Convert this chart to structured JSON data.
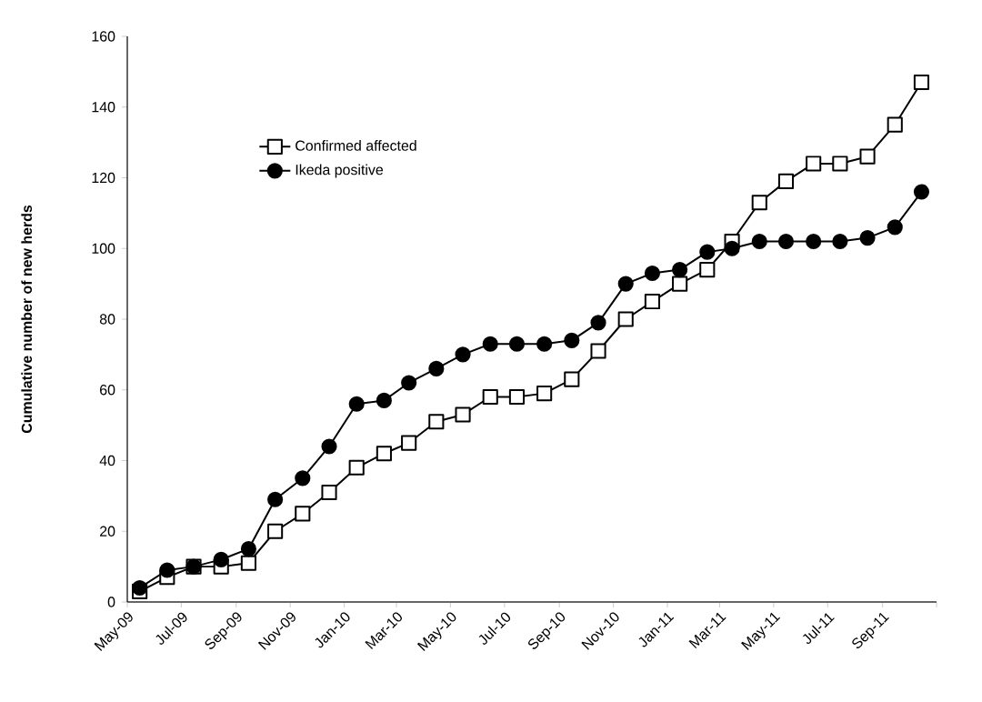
{
  "chart_data": {
    "type": "line",
    "ylabel": "Cumulative number of new herds",
    "x": [
      "2009-05-15",
      "2009-06-15",
      "2009-07-15",
      "2009-08-15",
      "2009-09-15",
      "2009-10-15",
      "2009-11-15",
      "2009-12-15",
      "2010-01-15",
      "2010-02-15",
      "2010-03-15",
      "2010-04-15",
      "2010-05-15",
      "2010-06-15",
      "2010-07-15",
      "2010-08-15",
      "2010-09-15",
      "2010-10-15",
      "2010-11-15",
      "2010-12-15",
      "2011-01-15",
      "2011-02-15",
      "2011-03-15",
      "2011-04-15",
      "2011-05-15",
      "2011-06-15",
      "2011-07-15",
      "2011-08-15",
      "2011-09-15",
      "2011-10-15"
    ],
    "series": [
      {
        "name": "Confirmed affected",
        "color": "#000000",
        "marker": "square",
        "values": [
          3,
          7,
          10,
          10,
          11,
          20,
          25,
          31,
          38,
          42,
          45,
          51,
          53,
          58,
          58,
          59,
          63,
          71,
          80,
          85,
          90,
          94,
          102,
          113,
          119,
          124,
          124,
          126,
          135,
          147
        ]
      },
      {
        "name": "Ikeda positive",
        "color": "#000000",
        "marker": "circle",
        "values": [
          4,
          9,
          10,
          12,
          15,
          29,
          35,
          44,
          56,
          57,
          62,
          66,
          70,
          73,
          73,
          73,
          74,
          79,
          90,
          93,
          94,
          99,
          100,
          102,
          102,
          102,
          102,
          103,
          106,
          116
        ]
      }
    ],
    "xlim": [
      "2009-05",
      "2011-11"
    ],
    "xticks": [
      {
        "value": "2009-05",
        "label": "May-09"
      },
      {
        "value": "2009-07",
        "label": "Jul-09"
      },
      {
        "value": "2009-09",
        "label": "Sep-09"
      },
      {
        "value": "2009-11",
        "label": "Nov-09"
      },
      {
        "value": "2010-01",
        "label": "Jan-10"
      },
      {
        "value": "2010-03",
        "label": "Mar-10"
      },
      {
        "value": "2010-05",
        "label": "May-10"
      },
      {
        "value": "2010-07",
        "label": "Jul-10"
      },
      {
        "value": "2010-09",
        "label": "Sep-10"
      },
      {
        "value": "2010-11",
        "label": "Nov-10"
      },
      {
        "value": "2011-01",
        "label": "Jan-11"
      },
      {
        "value": "2011-03",
        "label": "Mar-11"
      },
      {
        "value": "2011-05",
        "label": "May-11"
      },
      {
        "value": "2011-07",
        "label": "Jul-11"
      },
      {
        "value": "2011-09",
        "label": "Sep-11"
      },
      {
        "value": "2011-11",
        "label": null
      }
    ],
    "ylim": [
      0,
      160
    ],
    "yticks": [
      0,
      20,
      40,
      60,
      80,
      100,
      120,
      140,
      160
    ],
    "grid": false,
    "legend": "top left",
    "line_style": "solid"
  }
}
